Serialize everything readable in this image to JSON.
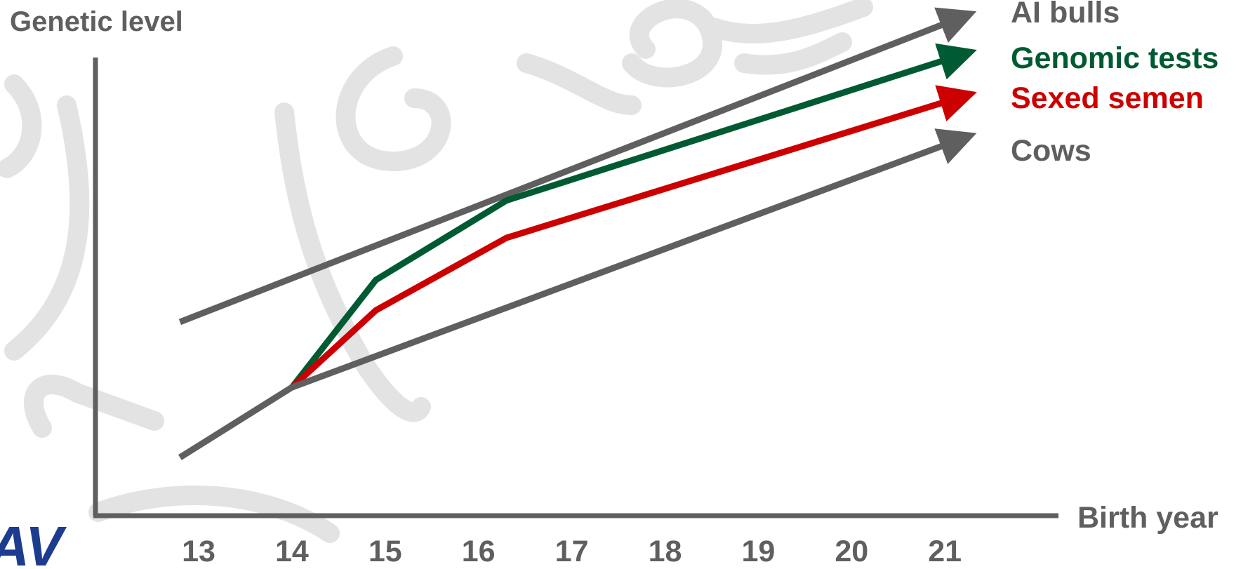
{
  "chart_data": {
    "type": "line",
    "ylabel": "Genetic level",
    "xlabel": "Birth year",
    "categories": [
      "13",
      "14",
      "15",
      "16",
      "17",
      "18",
      "19",
      "20",
      "21"
    ],
    "x_range": [
      12.8,
      21.2
    ],
    "y_range": [
      0,
      100
    ],
    "series": [
      {
        "name": "AI bulls",
        "color": "#5f5f5f",
        "points": [
          [
            12.8,
            35
          ],
          [
            21.15,
            100
          ]
        ]
      },
      {
        "name": "Genomic tests",
        "color": "#005a32",
        "points": [
          [
            14,
            21
          ],
          [
            14.9,
            44
          ],
          [
            16.3,
            61
          ],
          [
            21.15,
            92
          ]
        ]
      },
      {
        "name": "Sexed semen",
        "color": "#cc0000",
        "points": [
          [
            14,
            21
          ],
          [
            14.9,
            37.5
          ],
          [
            16.3,
            53
          ],
          [
            21.15,
            83
          ]
        ]
      },
      {
        "name": "Cows",
        "color": "#5f5f5f",
        "points": [
          [
            12.8,
            6
          ],
          [
            14,
            21
          ],
          [
            21.15,
            74
          ]
        ]
      }
    ],
    "legend_placement": "right, beside line ends",
    "grid": false
  },
  "logo": {
    "text": "IAV",
    "color": "#1d3c8f"
  },
  "colors": {
    "axis": "#5f5f5f",
    "watermark": "#e3e3e3",
    "tick_label": "#5f5f5f"
  }
}
